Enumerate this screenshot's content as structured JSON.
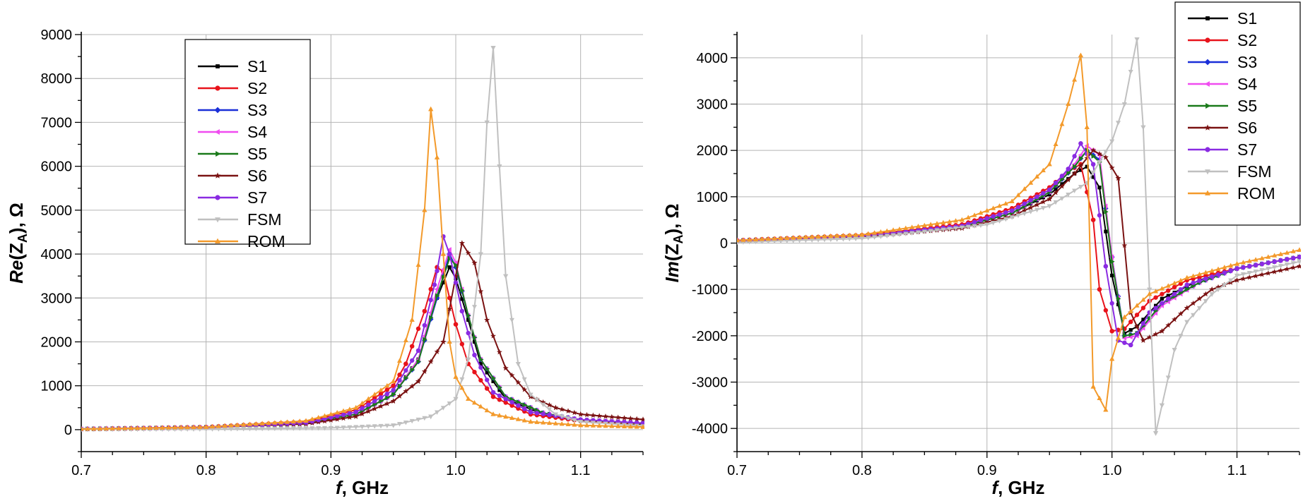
{
  "chart_data": [
    {
      "type": "line",
      "ylabel_parts": [
        "Re",
        "(Z",
        "A",
        "), Ω"
      ],
      "xlabel_parts": [
        "f",
        ", GHz"
      ],
      "xlim": [
        0.7,
        1.15
      ],
      "ylim": [
        -500,
        9000
      ],
      "xticks": [
        0.7,
        0.8,
        0.9,
        1.0,
        1.1
      ],
      "xtick_labels": [
        "0.7",
        "0.8",
        "0.9",
        "1.0",
        "1.1"
      ],
      "yticks": [
        0,
        1000,
        2000,
        3000,
        4000,
        5000,
        6000,
        7000,
        8000,
        9000
      ],
      "ytick_labels": [
        "0",
        "1000",
        "2000",
        "3000",
        "4000",
        "5000",
        "6000",
        "7000",
        "8000",
        "9000"
      ],
      "grid": true,
      "legend_position": "top-left",
      "series": [
        {
          "name": "S1",
          "color": "#000000",
          "marker": "square",
          "x": [
            0.7,
            0.8,
            0.88,
            0.92,
            0.95,
            0.97,
            0.985,
            0.995,
            1.0,
            1.01,
            1.02,
            1.04,
            1.07,
            1.1,
            1.15
          ],
          "y": [
            15,
            50,
            150,
            350,
            800,
            1600,
            3000,
            3700,
            3450,
            2500,
            1500,
            700,
            350,
            200,
            120
          ]
        },
        {
          "name": "S2",
          "color": "#e8131b",
          "marker": "circle",
          "x": [
            0.7,
            0.8,
            0.88,
            0.92,
            0.95,
            0.96,
            0.975,
            0.985,
            0.99,
            1.0,
            1.01,
            1.03,
            1.06,
            1.1,
            1.15
          ],
          "y": [
            15,
            60,
            180,
            450,
            1000,
            1500,
            2700,
            3700,
            3600,
            2400,
            1500,
            750,
            350,
            200,
            130
          ]
        },
        {
          "name": "S3",
          "color": "#1a2fd8",
          "marker": "diamond",
          "x": [
            0.7,
            0.8,
            0.88,
            0.92,
            0.95,
            0.97,
            0.985,
            0.995,
            1.0,
            1.01,
            1.02,
            1.04,
            1.07,
            1.1,
            1.15
          ],
          "y": [
            15,
            50,
            150,
            350,
            800,
            1550,
            3000,
            4000,
            3700,
            2600,
            1600,
            750,
            380,
            220,
            140
          ]
        },
        {
          "name": "S4",
          "color": "#f04cf0",
          "marker": "triangle-left",
          "x": [
            0.7,
            0.8,
            0.88,
            0.92,
            0.95,
            0.97,
            0.985,
            0.995,
            1.0,
            1.01,
            1.02,
            1.04,
            1.07,
            1.1,
            1.15
          ],
          "y": [
            15,
            50,
            150,
            350,
            800,
            1600,
            3200,
            4100,
            3800,
            2600,
            1600,
            750,
            380,
            220,
            140
          ]
        },
        {
          "name": "S5",
          "color": "#1a7a1a",
          "marker": "triangle-right",
          "x": [
            0.7,
            0.8,
            0.88,
            0.92,
            0.95,
            0.97,
            0.985,
            0.995,
            1.0,
            1.01,
            1.02,
            1.04,
            1.07,
            1.1,
            1.15
          ],
          "y": [
            15,
            50,
            150,
            350,
            800,
            1550,
            3050,
            3900,
            3750,
            2600,
            1600,
            750,
            380,
            220,
            140
          ]
        },
        {
          "name": "S6",
          "color": "#7a1212",
          "marker": "star",
          "x": [
            0.7,
            0.8,
            0.88,
            0.92,
            0.95,
            0.97,
            0.99,
            1.0,
            1.005,
            1.015,
            1.025,
            1.04,
            1.06,
            1.08,
            1.1,
            1.15
          ],
          "y": [
            15,
            50,
            130,
            300,
            650,
            1100,
            2000,
            3500,
            4250,
            3800,
            2500,
            1400,
            750,
            500,
            350,
            230
          ]
        },
        {
          "name": "S7",
          "color": "#8a2be2",
          "marker": "circle",
          "x": [
            0.7,
            0.8,
            0.88,
            0.92,
            0.95,
            0.97,
            0.983,
            0.99,
            0.995,
            1.005,
            1.015,
            1.03,
            1.06,
            1.1,
            1.15
          ],
          "y": [
            15,
            50,
            160,
            400,
            900,
            1800,
            3300,
            4400,
            4000,
            2700,
            1700,
            850,
            400,
            230,
            150
          ]
        },
        {
          "name": "FSM",
          "color": "#c0c0c0",
          "marker": "triangle-down",
          "x": [
            0.7,
            0.8,
            0.9,
            0.95,
            0.98,
            1.0,
            1.01,
            1.02,
            1.025,
            1.03,
            1.035,
            1.04,
            1.05,
            1.06,
            1.08,
            1.1,
            1.15
          ],
          "y": [
            5,
            15,
            40,
            100,
            300,
            700,
            1600,
            4000,
            7000,
            8700,
            6000,
            3500,
            1500,
            800,
            350,
            180,
            80
          ]
        },
        {
          "name": "ROM",
          "color": "#f39a2b",
          "marker": "triangle-up",
          "x": [
            0.7,
            0.8,
            0.88,
            0.92,
            0.95,
            0.965,
            0.975,
            0.98,
            0.985,
            0.99,
            0.995,
            1.0,
            1.01,
            1.03,
            1.06,
            1.1,
            1.15
          ],
          "y": [
            15,
            60,
            200,
            500,
            1100,
            2500,
            5000,
            7300,
            6200,
            4000,
            2000,
            1200,
            700,
            350,
            180,
            100,
            60
          ]
        }
      ]
    },
    {
      "type": "line",
      "ylabel_parts": [
        "Im",
        "(Z",
        "A",
        "), Ω"
      ],
      "xlabel_parts": [
        "f",
        ", GHz"
      ],
      "xlim": [
        0.7,
        1.15
      ],
      "ylim": [
        -4500,
        4500
      ],
      "xticks": [
        0.7,
        0.8,
        0.9,
        1.0,
        1.1
      ],
      "xtick_labels": [
        "0.7",
        "0.8",
        "0.9",
        "1.0",
        "1.1"
      ],
      "yticks": [
        -4000,
        -3000,
        -2000,
        -1000,
        0,
        1000,
        2000,
        3000,
        4000
      ],
      "ytick_labels": [
        "-4000",
        "-3000",
        "-2000",
        "-1000",
        "0",
        "1000",
        "2000",
        "3000",
        "4000"
      ],
      "grid": true,
      "legend_position": "top-right",
      "series": [
        {
          "name": "S1",
          "color": "#000000",
          "marker": "square",
          "x": [
            0.7,
            0.8,
            0.88,
            0.92,
            0.95,
            0.97,
            0.98,
            0.99,
            1.0,
            1.01,
            1.02,
            1.04,
            1.07,
            1.1,
            1.15
          ],
          "y": [
            50,
            150,
            350,
            650,
            1050,
            1500,
            1650,
            1200,
            -700,
            -1950,
            -1800,
            -1200,
            -800,
            -550,
            -300
          ]
        },
        {
          "name": "S2",
          "color": "#e8131b",
          "marker": "circle",
          "x": [
            0.7,
            0.8,
            0.88,
            0.92,
            0.95,
            0.965,
            0.975,
            0.985,
            0.99,
            1.0,
            1.01,
            1.03,
            1.06,
            1.1,
            1.15
          ],
          "y": [
            60,
            170,
            400,
            750,
            1200,
            1550,
            1700,
            500,
            -1000,
            -1900,
            -1850,
            -1250,
            -800,
            -550,
            -300
          ]
        },
        {
          "name": "S3",
          "color": "#1a2fd8",
          "marker": "diamond",
          "x": [
            0.7,
            0.8,
            0.88,
            0.92,
            0.95,
            0.97,
            0.98,
            0.99,
            1.0,
            1.01,
            1.02,
            1.04,
            1.07,
            1.1,
            1.15
          ],
          "y": [
            50,
            150,
            350,
            650,
            1100,
            1650,
            2000,
            1800,
            -300,
            -2000,
            -1950,
            -1300,
            -850,
            -550,
            -300
          ]
        },
        {
          "name": "S4",
          "color": "#f04cf0",
          "marker": "triangle-left",
          "x": [
            0.7,
            0.8,
            0.88,
            0.92,
            0.95,
            0.97,
            0.98,
            0.99,
            1.0,
            1.01,
            1.02,
            1.04,
            1.07,
            1.1,
            1.15
          ],
          "y": [
            50,
            150,
            350,
            650,
            1100,
            1700,
            2100,
            1900,
            -300,
            -2050,
            -2000,
            -1350,
            -850,
            -550,
            -300
          ]
        },
        {
          "name": "S5",
          "color": "#1a7a1a",
          "marker": "triangle-right",
          "x": [
            0.7,
            0.8,
            0.88,
            0.92,
            0.95,
            0.97,
            0.98,
            0.99,
            1.0,
            1.01,
            1.02,
            1.04,
            1.07,
            1.1,
            1.15
          ],
          "y": [
            50,
            150,
            350,
            650,
            1100,
            1650,
            2000,
            1750,
            -400,
            -2000,
            -1950,
            -1300,
            -850,
            -550,
            -300
          ]
        },
        {
          "name": "S6",
          "color": "#7a1212",
          "marker": "star",
          "x": [
            0.7,
            0.8,
            0.88,
            0.92,
            0.95,
            0.97,
            0.985,
            0.995,
            1.005,
            1.015,
            1.025,
            1.04,
            1.06,
            1.08,
            1.1,
            1.15
          ],
          "y": [
            50,
            140,
            320,
            580,
            950,
            1500,
            2000,
            1850,
            1400,
            -1500,
            -2100,
            -1900,
            -1400,
            -1000,
            -800,
            -500
          ]
        },
        {
          "name": "S7",
          "color": "#8a2be2",
          "marker": "circle",
          "x": [
            0.7,
            0.8,
            0.88,
            0.92,
            0.95,
            0.965,
            0.975,
            0.985,
            0.995,
            1.005,
            1.015,
            1.03,
            1.06,
            1.1,
            1.15
          ],
          "y": [
            50,
            150,
            370,
            700,
            1150,
            1600,
            2150,
            1700,
            -500,
            -2100,
            -2200,
            -1500,
            -900,
            -550,
            -300
          ]
        },
        {
          "name": "FSM",
          "color": "#c0c0c0",
          "marker": "triangle-down",
          "x": [
            0.7,
            0.8,
            0.9,
            0.95,
            0.98,
            1.0,
            1.01,
            1.02,
            1.025,
            1.03,
            1.035,
            1.04,
            1.05,
            1.06,
            1.08,
            1.1,
            1.15
          ],
          "y": [
            20,
            100,
            400,
            800,
            1300,
            2200,
            3000,
            4400,
            2500,
            -1000,
            -4100,
            -3500,
            -2300,
            -1700,
            -1100,
            -700,
            -400
          ]
        },
        {
          "name": "ROM",
          "color": "#f39a2b",
          "marker": "triangle-up",
          "x": [
            0.7,
            0.8,
            0.88,
            0.92,
            0.95,
            0.965,
            0.975,
            0.98,
            0.985,
            0.995,
            1.0,
            1.01,
            1.03,
            1.06,
            1.1,
            1.15
          ],
          "y": [
            60,
            180,
            500,
            900,
            1700,
            3000,
            4050,
            2500,
            -3100,
            -3600,
            -2500,
            -1600,
            -1100,
            -750,
            -450,
            -150
          ]
        }
      ]
    }
  ]
}
